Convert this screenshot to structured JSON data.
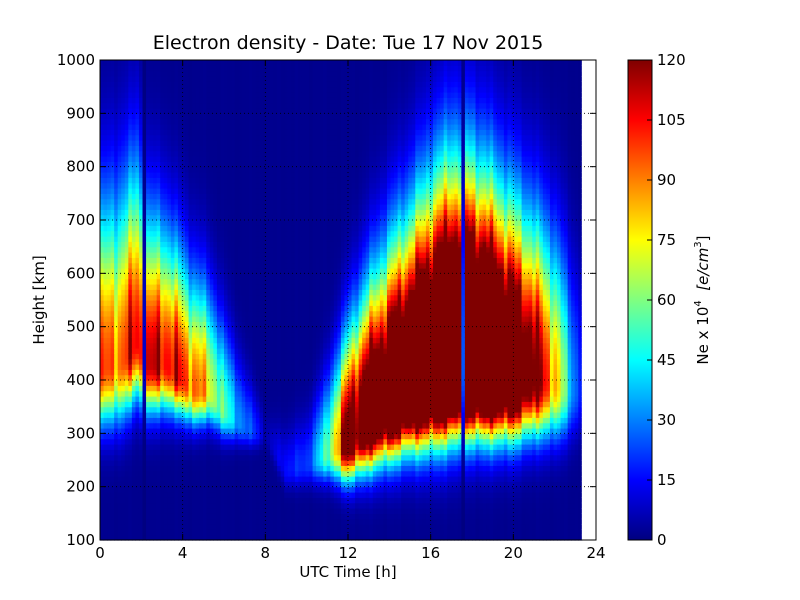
{
  "chart_data": {
    "type": "heatmap",
    "title": "Electron density - Date: Tue 17 Nov 2015",
    "xlabel": "UTC Time [h]",
    "ylabel": "Height [km]",
    "xlim": [
      0,
      24
    ],
    "ylim": [
      100,
      1000
    ],
    "x_ticks": [
      "0",
      "4",
      "8",
      "12",
      "16",
      "20",
      "24"
    ],
    "y_ticks": [
      "100",
      "200",
      "300",
      "400",
      "500",
      "600",
      "700",
      "800",
      "900",
      "1000"
    ],
    "grid": "dotted",
    "colormap": "jet",
    "colorbar": {
      "label_prefix": "Ne x 10",
      "label_exponent": "4",
      "label_units": "[e/cm",
      "label_units_exponent": "3",
      "label_units_close": "]",
      "range": [
        0,
        120
      ],
      "ticks": [
        "0",
        "15",
        "30",
        "45",
        "60",
        "75",
        "90",
        "105",
        "120"
      ],
      "colors": [
        "#00007f",
        "#0000ff",
        "#0080ff",
        "#00ffff",
        "#80ff80",
        "#ffff00",
        "#ff8000",
        "#ff0000",
        "#7f0000"
      ]
    },
    "data_extent_hours": [
      0,
      23.3
    ],
    "background_density": 2,
    "density_profile": [
      {
        "t": 0.0,
        "hmax": 420,
        "peak": 105,
        "width": 95,
        "upper": 190
      },
      {
        "t": 1.0,
        "hmax": 430,
        "peak": 110,
        "width": 100,
        "upper": 200
      },
      {
        "t": 1.8,
        "hmax": 470,
        "peak": 125,
        "width": 95,
        "upper": 210
      },
      {
        "t": 2.2,
        "hmax": 430,
        "peak": 120,
        "width": 85,
        "upper": 170
      },
      {
        "t": 3.0,
        "hmax": 430,
        "peak": 130,
        "width": 80,
        "upper": 160
      },
      {
        "t": 3.8,
        "hmax": 410,
        "peak": 120,
        "width": 70,
        "upper": 150
      },
      {
        "t": 4.5,
        "hmax": 380,
        "peak": 110,
        "width": 60,
        "upper": 140
      },
      {
        "t": 5.2,
        "hmax": 380,
        "peak": 90,
        "width": 55,
        "upper": 130
      },
      {
        "t": 6.0,
        "hmax": 340,
        "peak": 60,
        "width": 45,
        "upper": 110
      },
      {
        "t": 7.0,
        "hmax": 310,
        "peak": 30,
        "width": 30,
        "upper": 70
      },
      {
        "t": 7.6,
        "hmax": 300,
        "peak": 20,
        "width": 25,
        "upper": 40
      },
      {
        "t": 8.0,
        "hmax": 300,
        "peak": 3,
        "width": 20,
        "upper": 20
      },
      {
        "t": 9.0,
        "hmax": 230,
        "peak": 18,
        "width": 30,
        "upper": 40
      },
      {
        "t": 10.0,
        "hmax": 240,
        "peak": 22,
        "width": 35,
        "upper": 50
      },
      {
        "t": 11.0,
        "hmax": 260,
        "peak": 60,
        "width": 45,
        "upper": 90
      },
      {
        "t": 12.0,
        "hmax": 280,
        "peak": 150,
        "width": 65,
        "upper": 130
      },
      {
        "t": 13.0,
        "hmax": 320,
        "peak": 180,
        "width": 80,
        "upper": 150
      },
      {
        "t": 14.0,
        "hmax": 350,
        "peak": 200,
        "width": 90,
        "upper": 170
      },
      {
        "t": 15.0,
        "hmax": 380,
        "peak": 220,
        "width": 100,
        "upper": 180
      },
      {
        "t": 16.0,
        "hmax": 400,
        "peak": 240,
        "width": 110,
        "upper": 200
      },
      {
        "t": 17.0,
        "hmax": 420,
        "peak": 260,
        "width": 115,
        "upper": 210
      },
      {
        "t": 18.0,
        "hmax": 420,
        "peak": 260,
        "width": 110,
        "upper": 210
      },
      {
        "t": 19.0,
        "hmax": 410,
        "peak": 240,
        "width": 105,
        "upper": 200
      },
      {
        "t": 20.0,
        "hmax": 400,
        "peak": 200,
        "width": 100,
        "upper": 190
      },
      {
        "t": 21.0,
        "hmax": 400,
        "peak": 150,
        "width": 95,
        "upper": 180
      },
      {
        "t": 22.0,
        "hmax": 390,
        "peak": 100,
        "width": 90,
        "upper": 170
      },
      {
        "t": 22.8,
        "hmax": 380,
        "peak": 40,
        "width": 80,
        "upper": 150
      },
      {
        "t": 23.3,
        "hmax": 380,
        "peak": 20,
        "width": 70,
        "upper": 130
      }
    ],
    "dark_stripes_hours": [
      17.55,
      2.1
    ]
  }
}
